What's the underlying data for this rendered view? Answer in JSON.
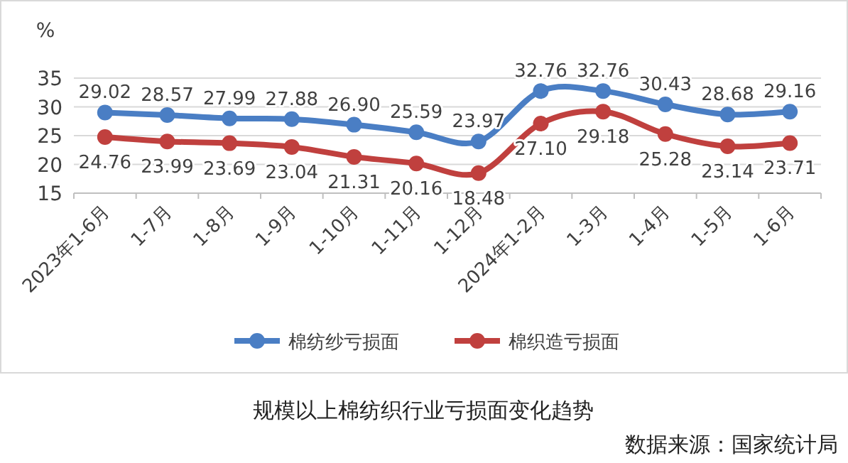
{
  "chart_data": {
    "type": "line",
    "title": "规模以上棉纺织行业亏损面变化趋势",
    "ylabel": "%",
    "annotations": [
      "数据来源：国家统计局"
    ],
    "categories": [
      "2023年1-6月",
      "1-7月",
      "1-8月",
      "1-9月",
      "1-10月",
      "1-11月",
      "1-12月",
      "2024年1-2月",
      "1-3月",
      "1-4月",
      "1-5月",
      "1-6月"
    ],
    "series": [
      {
        "name": "棉纺纱亏损面",
        "color": "#4a7ec4",
        "values": [
          29.02,
          28.57,
          27.99,
          27.88,
          26.9,
          25.59,
          23.97,
          32.76,
          32.76,
          30.43,
          28.68,
          29.16
        ],
        "value_labels": [
          "29.02",
          "28.57",
          "27.99",
          "27.88",
          "26.90",
          "25.59",
          "23.97",
          "32.76",
          "32.76",
          "30.43",
          "28.68",
          "29.16"
        ]
      },
      {
        "name": "棉织造亏损面",
        "color": "#c0403e",
        "values": [
          24.76,
          23.99,
          23.69,
          23.04,
          21.31,
          20.16,
          18.48,
          27.1,
          29.18,
          25.28,
          23.14,
          23.71
        ],
        "value_labels": [
          "24.76",
          "23.99",
          "23.69",
          "23.04",
          "21.31",
          "20.16",
          "18.48",
          "27.10",
          "29.18",
          "25.28",
          "23.14",
          "23.71"
        ]
      }
    ],
    "ylim": [
      15,
      35
    ],
    "yticks": [
      15,
      20,
      25,
      30,
      35
    ],
    "grid": "y",
    "legend": "bottom",
    "marker": "circle",
    "line_style": "solid"
  }
}
